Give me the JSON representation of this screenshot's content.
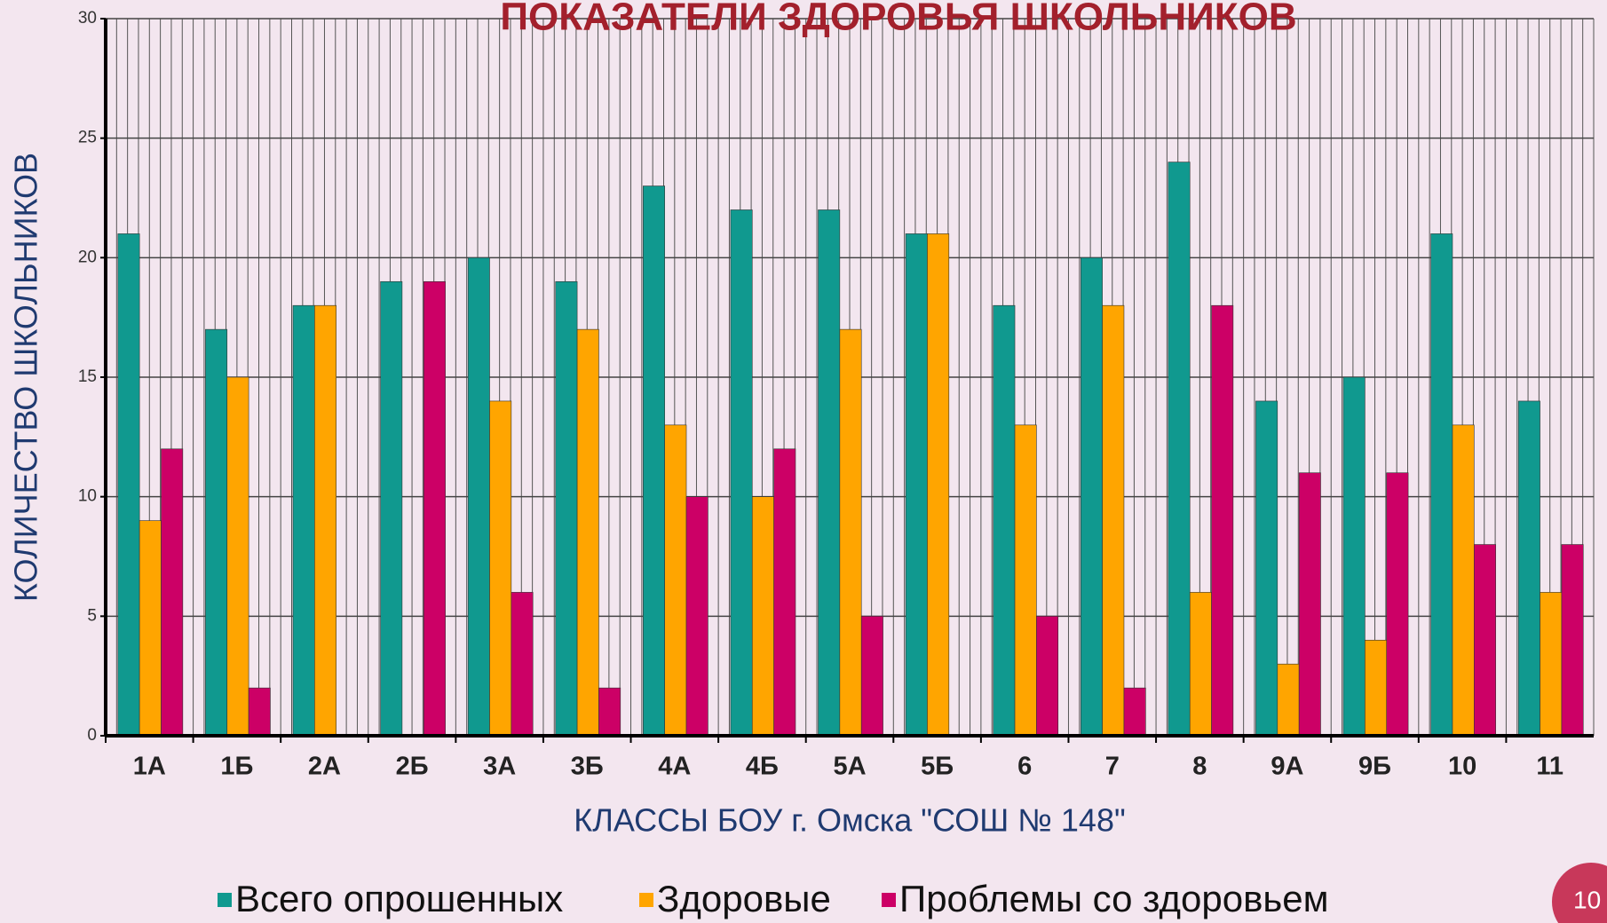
{
  "chart_data": {
    "type": "bar",
    "title": "ПОКАЗАТЕЛИ ЗДОРОВЬЯ ШКОЛЬНИКОВ",
    "x_label": "КЛАССЫ БОУ  г. Омска \"СОШ № 148\"",
    "y_label": "КОЛИЧЕСТВО ШКОЛЬНИКОВ",
    "categories": [
      "1А",
      "1Б",
      "2А",
      "2Б",
      "3А",
      "3Б",
      "4А",
      "4Б",
      "5А",
      "5Б",
      "6",
      "7",
      "8",
      "9А",
      "9Б",
      "10",
      "11"
    ],
    "series": [
      {
        "name": "Всего опрошенных",
        "color": "#10998f",
        "values": [
          21,
          17,
          18,
          19,
          20,
          19,
          23,
          22,
          22,
          21,
          18,
          20,
          24,
          14,
          15,
          21,
          14
        ]
      },
      {
        "name": "Здоровые",
        "color": "#ffa500",
        "values": [
          9,
          15,
          18,
          0,
          14,
          17,
          13,
          10,
          17,
          21,
          13,
          18,
          6,
          3,
          4,
          13,
          6
        ]
      },
      {
        "name": "Проблемы со здоровьем",
        "color": "#cc0066",
        "values": [
          12,
          2,
          0,
          19,
          6,
          2,
          10,
          12,
          5,
          0,
          5,
          2,
          18,
          11,
          11,
          8,
          8
        ]
      }
    ],
    "ylim": [
      0,
      30
    ],
    "yticks": [
      0,
      5,
      10,
      15,
      20,
      25,
      30
    ],
    "grid": true,
    "legend": "bottom"
  },
  "slide": {
    "page_number": "10"
  }
}
